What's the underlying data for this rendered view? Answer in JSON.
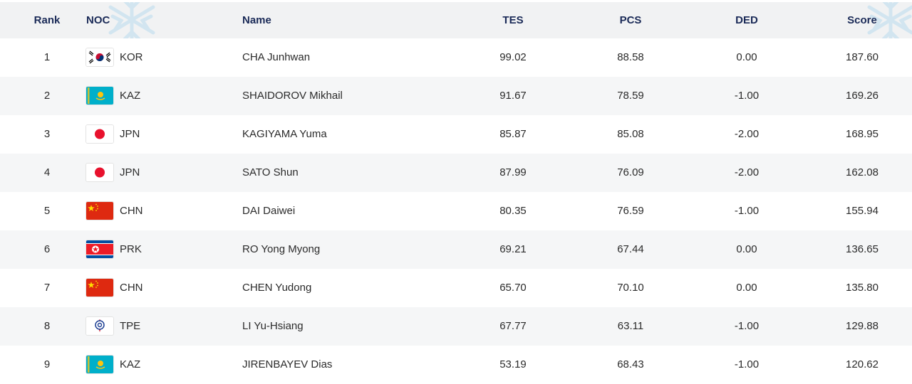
{
  "header": {
    "rank": "Rank",
    "noc": "NOC",
    "name": "Name",
    "tes": "TES",
    "pcs": "PCS",
    "ded": "DED",
    "score": "Score"
  },
  "rows": [
    {
      "rank": "1",
      "flag": "kor-flag-icon",
      "noc": "KOR",
      "name": "CHA Junhwan",
      "tes": "99.02",
      "pcs": "88.58",
      "ded": "0.00",
      "score": "187.60"
    },
    {
      "rank": "2",
      "flag": "kaz-flag-icon",
      "noc": "KAZ",
      "name": "SHAIDOROV Mikhail",
      "tes": "91.67",
      "pcs": "78.59",
      "ded": "-1.00",
      "score": "169.26"
    },
    {
      "rank": "3",
      "flag": "jpn-flag-icon",
      "noc": "JPN",
      "name": "KAGIYAMA Yuma",
      "tes": "85.87",
      "pcs": "85.08",
      "ded": "-2.00",
      "score": "168.95"
    },
    {
      "rank": "4",
      "flag": "jpn-flag-icon",
      "noc": "JPN",
      "name": "SATO Shun",
      "tes": "87.99",
      "pcs": "76.09",
      "ded": "-2.00",
      "score": "162.08"
    },
    {
      "rank": "5",
      "flag": "chn-flag-icon",
      "noc": "CHN",
      "name": "DAI Daiwei",
      "tes": "80.35",
      "pcs": "76.59",
      "ded": "-1.00",
      "score": "155.94"
    },
    {
      "rank": "6",
      "flag": "prk-flag-icon",
      "noc": "PRK",
      "name": "RO Yong Myong",
      "tes": "69.21",
      "pcs": "67.44",
      "ded": "0.00",
      "score": "136.65"
    },
    {
      "rank": "7",
      "flag": "chn-flag-icon",
      "noc": "CHN",
      "name": "CHEN Yudong",
      "tes": "65.70",
      "pcs": "70.10",
      "ded": "0.00",
      "score": "135.80"
    },
    {
      "rank": "8",
      "flag": "tpe-flag-icon",
      "noc": "TPE",
      "name": "LI Yu-Hsiang",
      "tes": "67.77",
      "pcs": "63.11",
      "ded": "-1.00",
      "score": "129.88"
    },
    {
      "rank": "9",
      "flag": "kaz-flag-icon",
      "noc": "KAZ",
      "name": "JIRENBAYEV Dias",
      "tes": "53.19",
      "pcs": "68.43",
      "ded": "-1.00",
      "score": "120.62"
    }
  ],
  "colors": {
    "header_bg": "#f1f2f3",
    "header_text": "#1a2a57",
    "row_alt_bg": "#f5f6f7",
    "snowflake": "#b9dcef"
  }
}
